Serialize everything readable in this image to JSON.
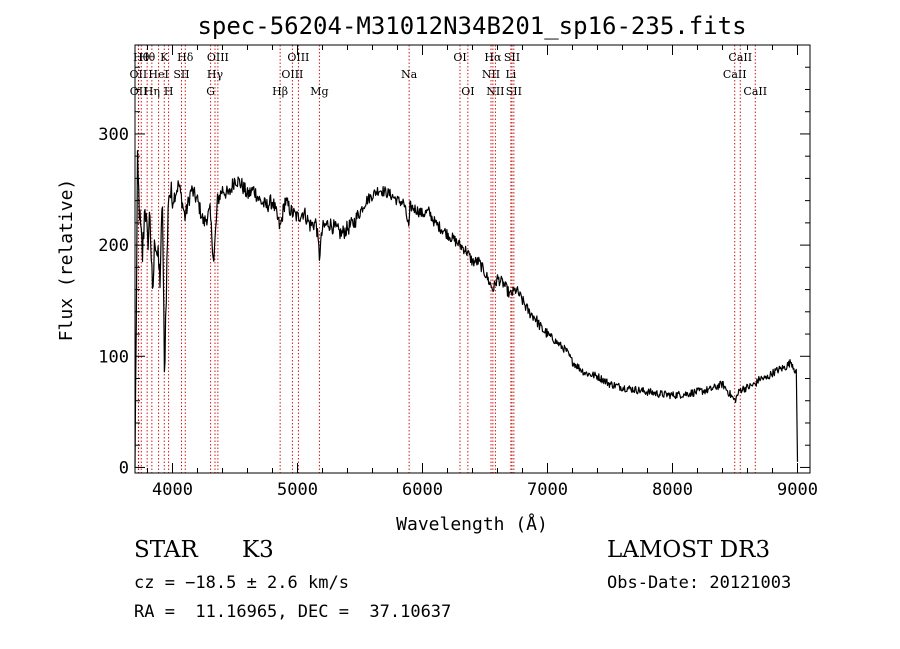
{
  "chart_data": {
    "type": "line",
    "title": "spec-56204-M31012N34B201_sp16-235.fits",
    "xlabel": "Wavelength (Å)",
    "ylabel": "Flux (relative)",
    "xlim": [
      3700,
      9100
    ],
    "ylim": [
      -5,
      380
    ],
    "xticks": [
      {
        "value": 4000,
        "label": "4000"
      },
      {
        "value": 5000,
        "label": "5000"
      },
      {
        "value": 6000,
        "label": "6000"
      },
      {
        "value": 7000,
        "label": "7000"
      },
      {
        "value": 8000,
        "label": "8000"
      },
      {
        "value": 9000,
        "label": "9000"
      }
    ],
    "yticks": [
      {
        "value": 0,
        "label": "0"
      },
      {
        "value": 100,
        "label": "100"
      },
      {
        "value": 200,
        "label": "200"
      },
      {
        "value": 300,
        "label": "300"
      }
    ],
    "series": [
      {
        "name": "spectrum",
        "x": [
          3700,
          3720,
          3740,
          3760,
          3780,
          3800,
          3820,
          3840,
          3860,
          3880,
          3900,
          3920,
          3935,
          3950,
          3970,
          4000,
          4050,
          4100,
          4150,
          4200,
          4250,
          4300,
          4330,
          4360,
          4400,
          4450,
          4500,
          4550,
          4600,
          4650,
          4700,
          4750,
          4800,
          4861,
          4900,
          4950,
          5000,
          5050,
          5100,
          5150,
          5175,
          5200,
          5250,
          5300,
          5350,
          5400,
          5450,
          5500,
          5550,
          5600,
          5650,
          5700,
          5750,
          5800,
          5850,
          5893,
          5900,
          5950,
          6000,
          6050,
          6100,
          6150,
          6200,
          6250,
          6300,
          6350,
          6400,
          6450,
          6500,
          6563,
          6600,
          6650,
          6700,
          6750,
          6800,
          6850,
          6900,
          6950,
          7000,
          7050,
          7100,
          7150,
          7200,
          7300,
          7400,
          7500,
          7600,
          7700,
          7800,
          7900,
          8000,
          8100,
          8200,
          8300,
          8400,
          8498,
          8542,
          8600,
          8662,
          8700,
          8750,
          8800,
          8850,
          8900,
          8950,
          8990,
          9000
        ],
        "y": [
          0,
          270,
          220,
          190,
          240,
          200,
          230,
          150,
          210,
          190,
          170,
          240,
          80,
          160,
          250,
          240,
          255,
          225,
          250,
          240,
          220,
          230,
          185,
          240,
          250,
          245,
          260,
          255,
          245,
          250,
          240,
          235,
          240,
          215,
          240,
          230,
          225,
          230,
          218,
          220,
          190,
          215,
          220,
          215,
          210,
          215,
          220,
          230,
          240,
          245,
          250,
          248,
          245,
          240,
          238,
          215,
          235,
          232,
          228,
          230,
          220,
          215,
          210,
          205,
          200,
          195,
          185,
          185,
          175,
          160,
          170,
          165,
          155,
          160,
          150,
          140,
          135,
          125,
          120,
          115,
          110,
          105,
          95,
          85,
          82,
          75,
          72,
          70,
          68,
          66,
          65,
          66,
          68,
          70,
          75,
          60,
          70,
          72,
          75,
          80,
          80,
          85,
          88,
          90,
          95,
          85,
          5
        ]
      }
    ],
    "lines": [
      {
        "wavelength": 3727,
        "label": "OII",
        "row": 2
      },
      {
        "wavelength": 3729,
        "label": "OII",
        "row": 3
      },
      {
        "wavelength": 3750,
        "label": "Hθ",
        "row": 1
      },
      {
        "wavelength": 3797,
        "label": "Hθ",
        "row": 1
      },
      {
        "wavelength": 3835,
        "label": "Hη",
        "row": 3
      },
      {
        "wavelength": 3889,
        "label": "HeI",
        "row": 2
      },
      {
        "wavelength": 3934,
        "label": "K",
        "row": 1
      },
      {
        "wavelength": 3969,
        "label": "H",
        "row": 3
      },
      {
        "wavelength": 4072,
        "label": "SII",
        "row": 2
      },
      {
        "wavelength": 4102,
        "label": "Hδ",
        "row": 1
      },
      {
        "wavelength": 4305,
        "label": "G",
        "row": 3
      },
      {
        "wavelength": 4340,
        "label": "Hγ",
        "row": 2
      },
      {
        "wavelength": 4363,
        "label": "OIII",
        "row": 1
      },
      {
        "wavelength": 4861,
        "label": "Hβ",
        "row": 3
      },
      {
        "wavelength": 4959,
        "label": "OIII",
        "row": 2
      },
      {
        "wavelength": 5007,
        "label": "OIII",
        "row": 1
      },
      {
        "wavelength": 5175,
        "label": "Mg",
        "row": 3
      },
      {
        "wavelength": 5893,
        "label": "Na",
        "row": 2
      },
      {
        "wavelength": 6300,
        "label": "OI",
        "row": 1
      },
      {
        "wavelength": 6363,
        "label": "OI",
        "row": 3
      },
      {
        "wavelength": 6548,
        "label": "NII",
        "row": 2
      },
      {
        "wavelength": 6563,
        "label": "Hα",
        "row": 1
      },
      {
        "wavelength": 6583,
        "label": "NII",
        "row": 3
      },
      {
        "wavelength": 6707,
        "label": "Li",
        "row": 2
      },
      {
        "wavelength": 6716,
        "label": "SII",
        "row": 1
      },
      {
        "wavelength": 6731,
        "label": "SII",
        "row": 3
      },
      {
        "wavelength": 8498,
        "label": "CaII",
        "row": 2
      },
      {
        "wavelength": 8542,
        "label": "CaII",
        "row": 1
      },
      {
        "wavelength": 8662,
        "label": "CaII",
        "row": 3
      }
    ]
  },
  "footer": {
    "object_type": "STAR",
    "subclass": "K3",
    "survey": "LAMOST DR3",
    "redshift": "cz = −18.5 ± 2.6 km/s",
    "obs_date": "Obs-Date: 20121003",
    "coords": "RA =  11.16965, DEC =  37.10637"
  },
  "colors": {
    "axis": "#000000",
    "spectrum": "#000000",
    "line_markers": "#cc0000"
  }
}
